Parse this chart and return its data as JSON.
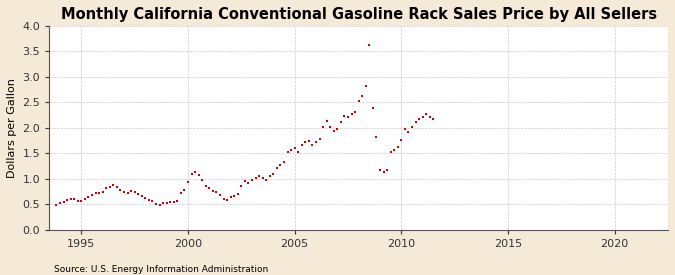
{
  "title": "Monthly California Conventional Gasoline Rack Sales Price by All Sellers",
  "ylabel": "Dollars per Gallon",
  "source": "Source: U.S. Energy Information Administration",
  "background_color": "#f5ead8",
  "plot_background_color": "#ffffff",
  "marker_color": "#cc0000",
  "ylim": [
    0.0,
    4.0
  ],
  "xlim_start": 1993.5,
  "xlim_end": 2022.5,
  "yticks": [
    0.0,
    0.5,
    1.0,
    1.5,
    2.0,
    2.5,
    3.0,
    3.5,
    4.0
  ],
  "xticks": [
    1995,
    2000,
    2005,
    2010,
    2015,
    2020
  ],
  "grid_color": "#bbbbbb",
  "title_fontsize": 10.5,
  "axis_fontsize": 8,
  "tick_fontsize": 8,
  "dates": [
    1993.83,
    1994.0,
    1994.17,
    1994.33,
    1994.5,
    1994.67,
    1994.83,
    1995.0,
    1995.17,
    1995.33,
    1995.5,
    1995.67,
    1995.83,
    1996.0,
    1996.17,
    1996.33,
    1996.5,
    1996.67,
    1996.83,
    1997.0,
    1997.17,
    1997.33,
    1997.5,
    1997.67,
    1997.83,
    1998.0,
    1998.17,
    1998.33,
    1998.5,
    1998.67,
    1998.83,
    1999.0,
    1999.17,
    1999.33,
    1999.5,
    1999.67,
    1999.83,
    2000.0,
    2000.17,
    2000.33,
    2000.5,
    2000.67,
    2000.83,
    2001.0,
    2001.17,
    2001.33,
    2001.5,
    2001.67,
    2001.83,
    2002.0,
    2002.17,
    2002.33,
    2002.5,
    2002.67,
    2002.83,
    2003.0,
    2003.17,
    2003.33,
    2003.5,
    2003.67,
    2003.83,
    2004.0,
    2004.17,
    2004.33,
    2004.5,
    2004.67,
    2004.83,
    2005.0,
    2005.17,
    2005.33,
    2005.5,
    2005.67,
    2005.83,
    2006.0,
    2006.17,
    2006.33,
    2006.5,
    2006.67,
    2006.83,
    2007.0,
    2007.17,
    2007.33,
    2007.5,
    2007.67,
    2007.83,
    2008.0,
    2008.17,
    2008.33,
    2008.5,
    2008.67,
    2008.83,
    2009.0,
    2009.17,
    2009.33,
    2009.5,
    2009.67,
    2009.83,
    2010.0,
    2010.17,
    2010.33,
    2010.5,
    2010.67,
    2010.83,
    2011.0,
    2011.17,
    2011.33,
    2011.5
  ],
  "values": [
    0.48,
    0.52,
    0.55,
    0.58,
    0.61,
    0.6,
    0.57,
    0.57,
    0.6,
    0.65,
    0.68,
    0.73,
    0.72,
    0.74,
    0.82,
    0.84,
    0.88,
    0.84,
    0.78,
    0.74,
    0.73,
    0.77,
    0.75,
    0.71,
    0.67,
    0.63,
    0.59,
    0.56,
    0.51,
    0.49,
    0.52,
    0.52,
    0.55,
    0.54,
    0.56,
    0.72,
    0.78,
    0.93,
    1.1,
    1.13,
    1.07,
    0.97,
    0.86,
    0.82,
    0.77,
    0.74,
    0.69,
    0.61,
    0.58,
    0.64,
    0.67,
    0.71,
    0.85,
    0.95,
    0.92,
    0.98,
    1.02,
    1.06,
    1.01,
    0.97,
    1.05,
    1.1,
    1.22,
    1.27,
    1.32,
    1.52,
    1.57,
    1.6,
    1.52,
    1.67,
    1.73,
    1.74,
    1.67,
    1.72,
    1.78,
    2.02,
    2.13,
    2.02,
    1.93,
    1.97,
    2.12,
    2.23,
    2.22,
    2.27,
    2.32,
    2.52,
    2.62,
    2.82,
    3.62,
    2.38,
    1.82,
    1.18,
    1.13,
    1.18,
    1.52,
    1.57,
    1.62,
    1.77,
    1.97,
    1.92,
    2.02,
    2.12,
    2.18,
    2.22,
    2.27,
    2.22,
    2.18
  ]
}
